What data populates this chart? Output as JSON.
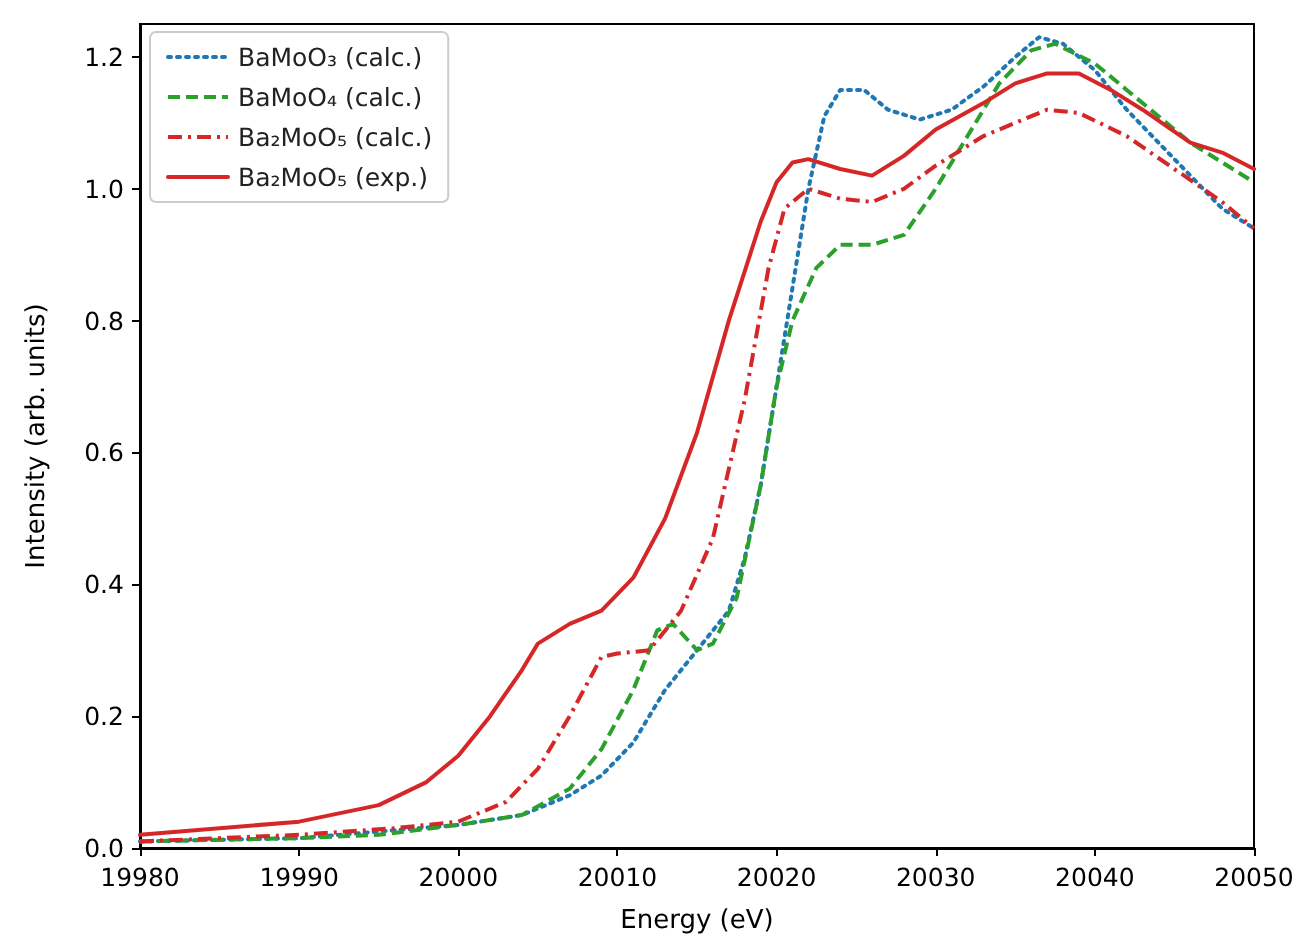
{
  "chart_data": {
    "type": "line",
    "xlabel": "Energy (eV)",
    "ylabel": "Intensity (arb. units)",
    "xlim": [
      19980,
      20050
    ],
    "ylim": [
      0,
      1.25
    ],
    "xticks": [
      19980,
      19990,
      20000,
      20010,
      20020,
      20030,
      20040,
      20050
    ],
    "yticks": [
      {
        "value": 0,
        "label": "0.0"
      },
      0.2,
      0.4,
      0.6,
      0.8,
      {
        "value": 1,
        "label": "1.0"
      },
      1.2
    ],
    "grid": false,
    "legend": "top left",
    "marker": "none",
    "series": [
      {
        "name": "BaMoO₃ (calc.)",
        "color": "#1f77b4",
        "line_style": "dotted",
        "x": [
          19980,
          19990,
          19995,
          20000,
          20004,
          20007,
          20009,
          20011,
          20013,
          20015,
          20017,
          20018,
          20019,
          20020,
          20021,
          20022,
          20023,
          20024,
          20025.5,
          20027,
          20029,
          20031,
          20033,
          20035,
          20036.5,
          20038,
          20040,
          20042,
          20044,
          20046,
          20048,
          20050
        ],
        "values": [
          0.01,
          0.015,
          0.025,
          0.035,
          0.05,
          0.08,
          0.11,
          0.16,
          0.24,
          0.3,
          0.36,
          0.44,
          0.55,
          0.7,
          0.85,
          1.0,
          1.11,
          1.15,
          1.15,
          1.12,
          1.105,
          1.12,
          1.155,
          1.2,
          1.23,
          1.22,
          1.18,
          1.12,
          1.07,
          1.02,
          0.97,
          0.94
        ]
      },
      {
        "name": "BaMoO₄ (calc.)",
        "color": "#2ca02c",
        "line_style": "dashed",
        "x": [
          19980,
          19990,
          19995,
          20000,
          20004,
          20007,
          20009,
          20011,
          20012.5,
          20013.5,
          20015,
          20016,
          20017.5,
          20019,
          20020,
          20021,
          20022.5,
          20024,
          20026,
          20028,
          20030,
          20032,
          20034,
          20036,
          20037.5,
          20040,
          20042,
          20044,
          20046,
          20048,
          20050
        ],
        "values": [
          0.01,
          0.015,
          0.02,
          0.035,
          0.05,
          0.09,
          0.15,
          0.24,
          0.33,
          0.34,
          0.3,
          0.31,
          0.38,
          0.55,
          0.7,
          0.8,
          0.88,
          0.915,
          0.915,
          0.93,
          1.0,
          1.08,
          1.16,
          1.21,
          1.22,
          1.19,
          1.15,
          1.11,
          1.07,
          1.04,
          1.01
        ]
      },
      {
        "name": "Ba₂MoO₅ (calc.)",
        "color": "#d62728",
        "line_style": "dashdot",
        "x": [
          19980,
          19990,
          19996,
          20000,
          20003,
          20005,
          20007,
          20009,
          20010,
          20012,
          20014,
          20016,
          20018,
          20019.5,
          20020.5,
          20022,
          20024,
          20026,
          20028,
          20030,
          20033,
          20035,
          20037,
          20039,
          20042,
          20045,
          20048,
          20050
        ],
        "values": [
          0.01,
          0.02,
          0.03,
          0.04,
          0.07,
          0.12,
          0.2,
          0.29,
          0.295,
          0.3,
          0.36,
          0.47,
          0.68,
          0.88,
          0.97,
          1.0,
          0.985,
          0.98,
          1.0,
          1.035,
          1.08,
          1.1,
          1.12,
          1.115,
          1.08,
          1.03,
          0.98,
          0.94
        ]
      },
      {
        "name": "Ba₂MoO₅ (exp.)",
        "color": "#d62728",
        "line_style": "solid",
        "x": [
          19980,
          19990,
          19995,
          19998,
          20000,
          20002,
          20004,
          20005,
          20007,
          20009,
          20011,
          20013,
          20015,
          20017,
          20019,
          20020,
          20021,
          20022,
          20024,
          20026,
          20028,
          20030,
          20033,
          20035,
          20037,
          20039,
          20041,
          20043,
          20046,
          20048,
          20050
        ],
        "values": [
          0.02,
          0.04,
          0.065,
          0.1,
          0.14,
          0.2,
          0.27,
          0.31,
          0.34,
          0.36,
          0.41,
          0.5,
          0.63,
          0.8,
          0.95,
          1.01,
          1.04,
          1.045,
          1.03,
          1.02,
          1.05,
          1.09,
          1.13,
          1.16,
          1.175,
          1.175,
          1.15,
          1.12,
          1.07,
          1.055,
          1.03
        ]
      }
    ]
  }
}
